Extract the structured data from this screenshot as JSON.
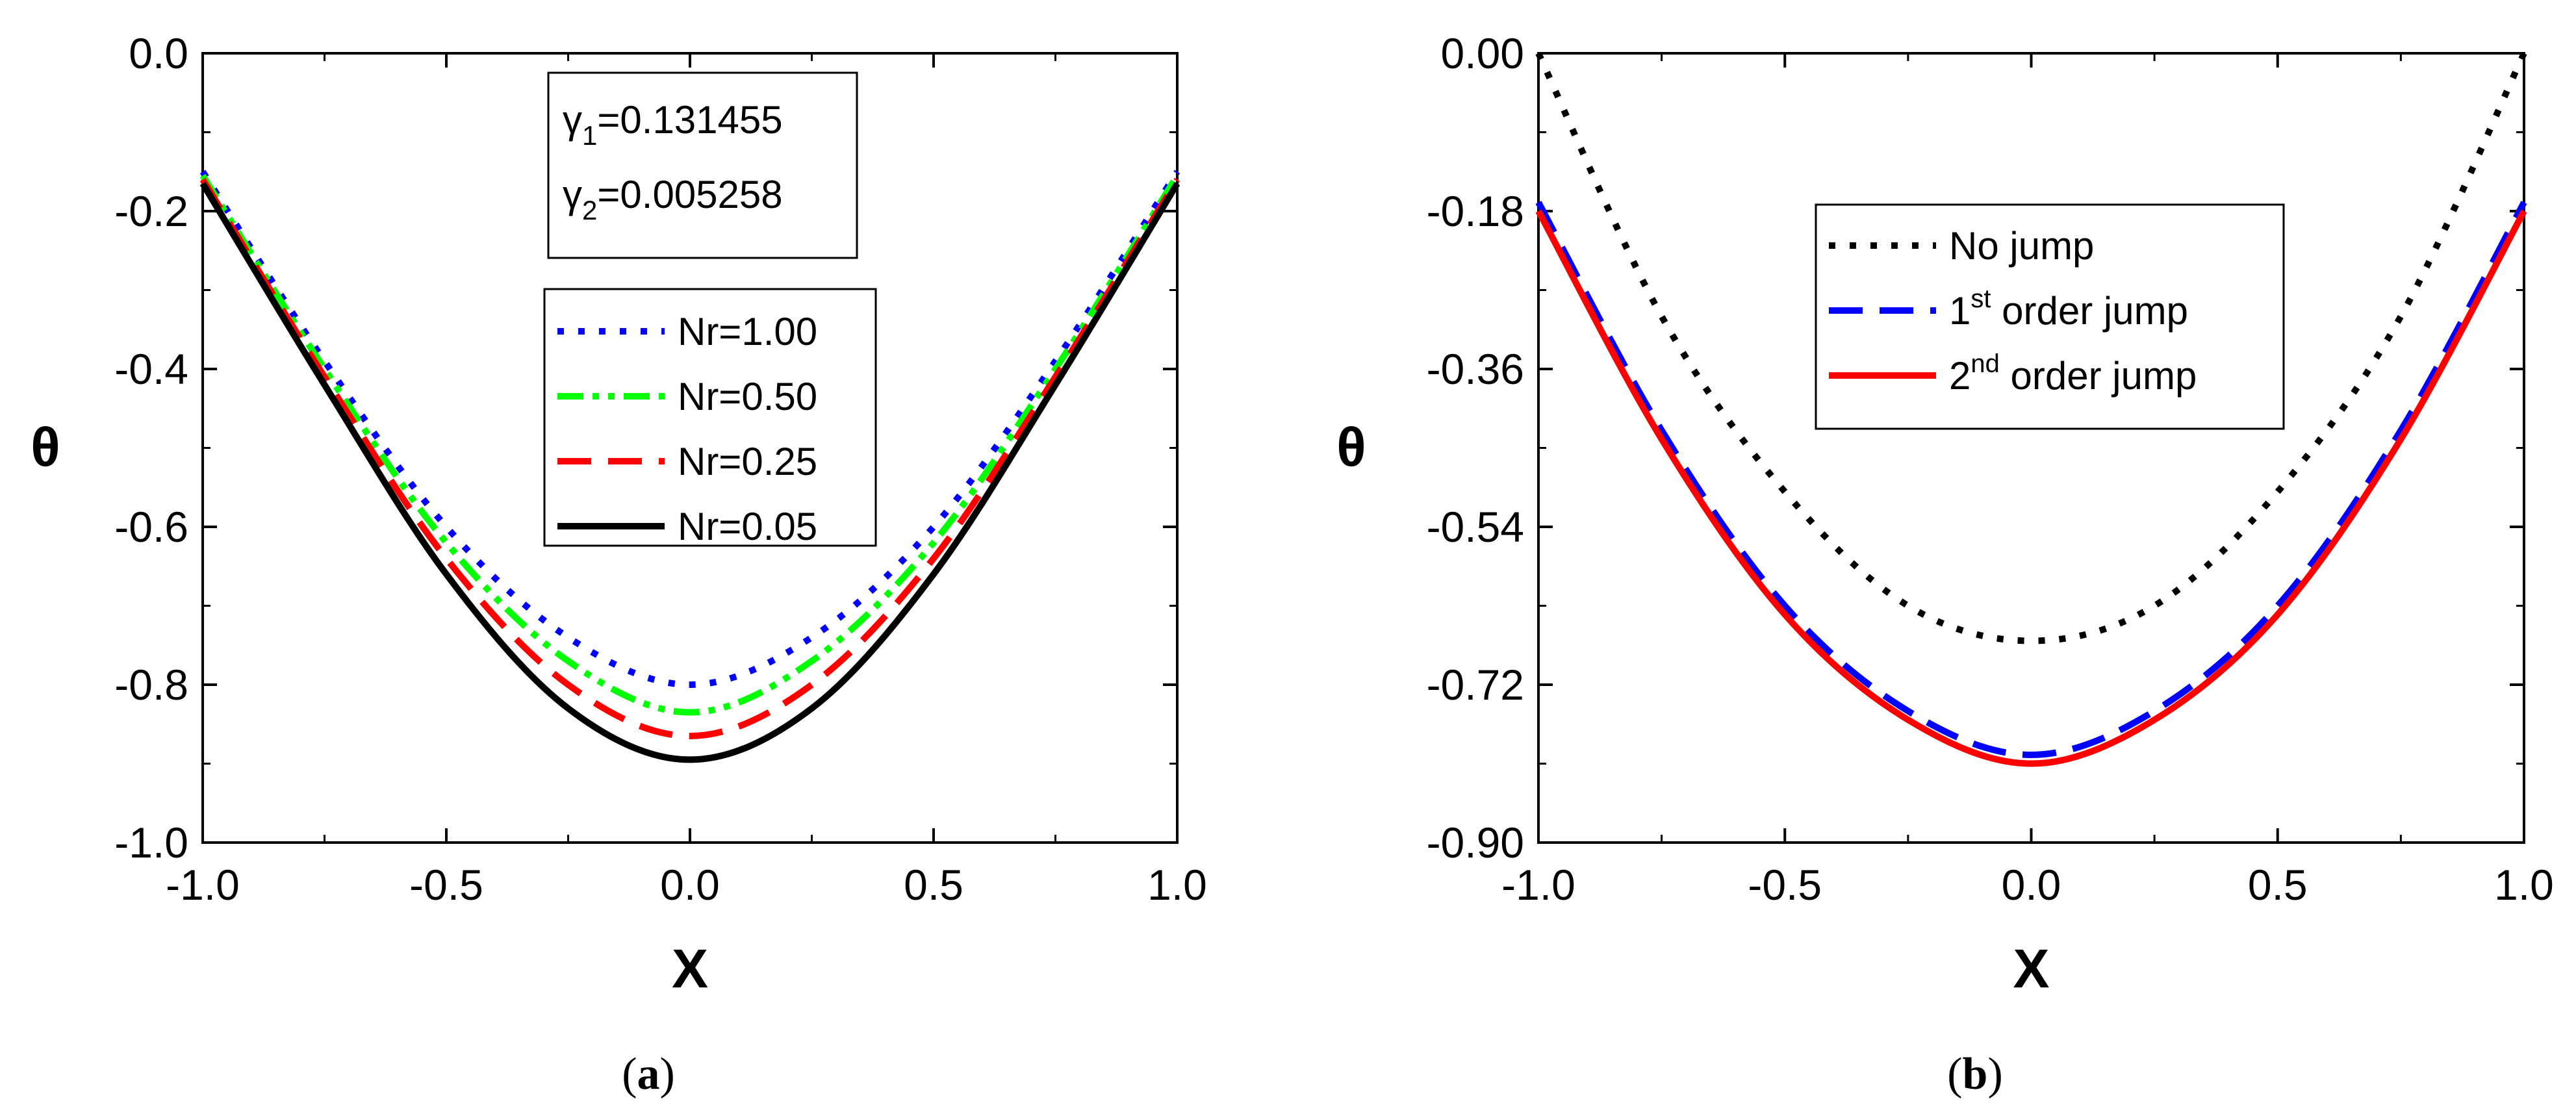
{
  "chart_data": [
    {
      "panel": "a",
      "caption": "(a)",
      "type": "line",
      "xlabel": "X",
      "ylabel": "θ",
      "xlim": [
        -1.0,
        1.0
      ],
      "ylim": [
        -1.0,
        0.0
      ],
      "xticks": [
        "-1.0",
        "-0.5",
        "0.0",
        "0.5",
        "1.0"
      ],
      "yticks": [
        "0.0",
        "-0.2",
        "-0.4",
        "-0.6",
        "-0.8",
        "-1.0"
      ],
      "params": [
        {
          "sym": "γ",
          "sub": "1",
          "rest": "=0.131455"
        },
        {
          "sym": "γ",
          "sub": "2",
          "rest": "=0.005258"
        }
      ],
      "legend_position": "top-center",
      "series": [
        {
          "name": "Nr=1.00",
          "color": "#0000ff",
          "style": "dot",
          "x": [
            -1.0,
            -0.75,
            -0.5,
            -0.25,
            0.0,
            0.25,
            0.5,
            0.75,
            1.0
          ],
          "values": [
            -0.15,
            -0.39,
            -0.6,
            -0.74,
            -0.8,
            -0.74,
            -0.6,
            -0.39,
            -0.15
          ]
        },
        {
          "name": "Nr=0.50",
          "color": "#00ff00",
          "style": "dashdotdot",
          "x": [
            -1.0,
            -0.75,
            -0.5,
            -0.25,
            0.0,
            0.25,
            0.5,
            0.75,
            1.0
          ],
          "values": [
            -0.155,
            -0.4,
            -0.62,
            -0.77,
            -0.835,
            -0.77,
            -0.62,
            -0.4,
            -0.155
          ]
        },
        {
          "name": "Nr=0.25",
          "color": "#ff0000",
          "style": "dash",
          "x": [
            -1.0,
            -0.75,
            -0.5,
            -0.25,
            0.0,
            0.25,
            0.5,
            0.75,
            1.0
          ],
          "values": [
            -0.16,
            -0.41,
            -0.64,
            -0.8,
            -0.865,
            -0.8,
            -0.64,
            -0.41,
            -0.16
          ]
        },
        {
          "name": "Nr=0.05",
          "color": "#000000",
          "style": "solid",
          "x": [
            -1.0,
            -0.75,
            -0.5,
            -0.25,
            0.0,
            0.25,
            0.5,
            0.75,
            1.0
          ],
          "values": [
            -0.165,
            -0.42,
            -0.66,
            -0.83,
            -0.895,
            -0.83,
            -0.66,
            -0.42,
            -0.165
          ]
        }
      ]
    },
    {
      "panel": "b",
      "caption": "(b)",
      "type": "line",
      "xlabel": "X",
      "ylabel": "θ",
      "xlim": [
        -1.0,
        1.0
      ],
      "ylim": [
        -0.9,
        0.0
      ],
      "xticks": [
        "-1.0",
        "-0.5",
        "0.0",
        "0.5",
        "1.0"
      ],
      "yticks": [
        "0.00",
        "-0.18",
        "-0.36",
        "-0.54",
        "-0.72",
        "-0.90"
      ],
      "legend_position": "top-center",
      "series": [
        {
          "name": "No jump",
          "sup": "",
          "tail": "",
          "color": "#000000",
          "style": "dot",
          "x": [
            -1.0,
            -0.75,
            -0.5,
            -0.25,
            0.0,
            0.25,
            0.5,
            0.75,
            1.0
          ],
          "values": [
            0.0,
            -0.3,
            -0.5,
            -0.63,
            -0.67,
            -0.63,
            -0.5,
            -0.3,
            0.0
          ]
        },
        {
          "name": "1",
          "sup": "st",
          "tail": " order jump",
          "color": "#0000ff",
          "style": "dash",
          "x": [
            -1.0,
            -0.75,
            -0.5,
            -0.25,
            0.0,
            0.25,
            0.5,
            0.75,
            1.0
          ],
          "values": [
            -0.17,
            -0.43,
            -0.63,
            -0.75,
            -0.8,
            -0.75,
            -0.63,
            -0.43,
            -0.17
          ]
        },
        {
          "name": "2",
          "sup": "nd",
          "tail": " order jump",
          "color": "#ff0000",
          "style": "solid",
          "x": [
            -1.0,
            -0.75,
            -0.5,
            -0.25,
            0.0,
            0.25,
            0.5,
            0.75,
            1.0
          ],
          "values": [
            -0.18,
            -0.44,
            -0.64,
            -0.76,
            -0.81,
            -0.76,
            -0.64,
            -0.44,
            -0.18
          ]
        }
      ]
    }
  ]
}
